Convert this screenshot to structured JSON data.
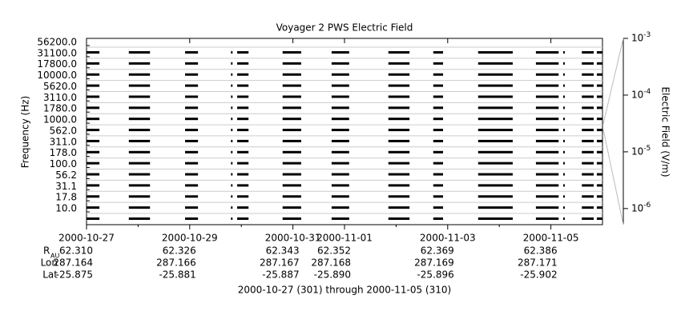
{
  "chart_data": {
    "type": "strip",
    "title": "Voyager 2 PWS Electric Field",
    "ylabel": "Frequency (Hz)",
    "y2label": "Electric Field (V/m)",
    "xlabel": "2000-10-27 (301) through 2000-11-05 (310)",
    "categories": [
      "10.0",
      "17.8",
      "31.1",
      "56.2",
      "100.0",
      "178.0",
      "311.0",
      "562.0",
      "1000.0",
      "1780.0",
      "3110.0",
      "5620.0",
      "10000.0",
      "17800.0",
      "31100.0",
      "56200.0"
    ],
    "color": "#000000",
    "xlim": [
      301,
      311
    ],
    "xticks": [
      {
        "value": 301,
        "label": "2000-10-27"
      },
      {
        "value": 303,
        "label": "2000-10-29"
      },
      {
        "value": 305,
        "label": "2000-10-31"
      },
      {
        "value": 306,
        "label": "2000-11-01"
      },
      {
        "value": 308,
        "label": "2000-11-03"
      },
      {
        "value": 310,
        "label": "2000-11-05"
      }
    ],
    "xminorticks": [
      302,
      304,
      307,
      309
    ],
    "y2lim": [
      5.2e-07,
      0.001
    ],
    "y2log": true,
    "y2ticks": [
      {
        "value": 1e-06,
        "label": "10-6"
      },
      {
        "value": 1e-05,
        "label": "10-5"
      },
      {
        "value": 0.0001,
        "label": "10-4"
      },
      {
        "value": 0.001,
        "label": "10-3"
      }
    ],
    "segments": [
      [
        301.0,
        301.25
      ],
      [
        301.82,
        302.23
      ],
      [
        302.91,
        303.16
      ],
      [
        303.8,
        303.83
      ],
      [
        303.92,
        304.14
      ],
      [
        304.8,
        305.16
      ],
      [
        305.75,
        306.09
      ],
      [
        306.85,
        307.26
      ],
      [
        307.72,
        307.91
      ],
      [
        308.59,
        309.26
      ],
      [
        309.71,
        310.15
      ],
      [
        310.24,
        310.27
      ],
      [
        310.6,
        310.83
      ],
      [
        310.89,
        311.0
      ]
    ],
    "ephemeris": {
      "labels": [
        "R",
        "AU",
        "Lon",
        "Lat"
      ],
      "R": [
        "62.310",
        "62.326",
        "62.343",
        "62.352",
        "62.369",
        "62.386"
      ],
      "Lon": [
        "287.164",
        "287.166",
        "287.167",
        "287.168",
        "287.169",
        "287.171"
      ],
      "Lat": [
        "-25.875",
        "-25.881",
        "-25.887",
        "-25.890",
        "-25.896",
        "-25.902"
      ]
    }
  }
}
